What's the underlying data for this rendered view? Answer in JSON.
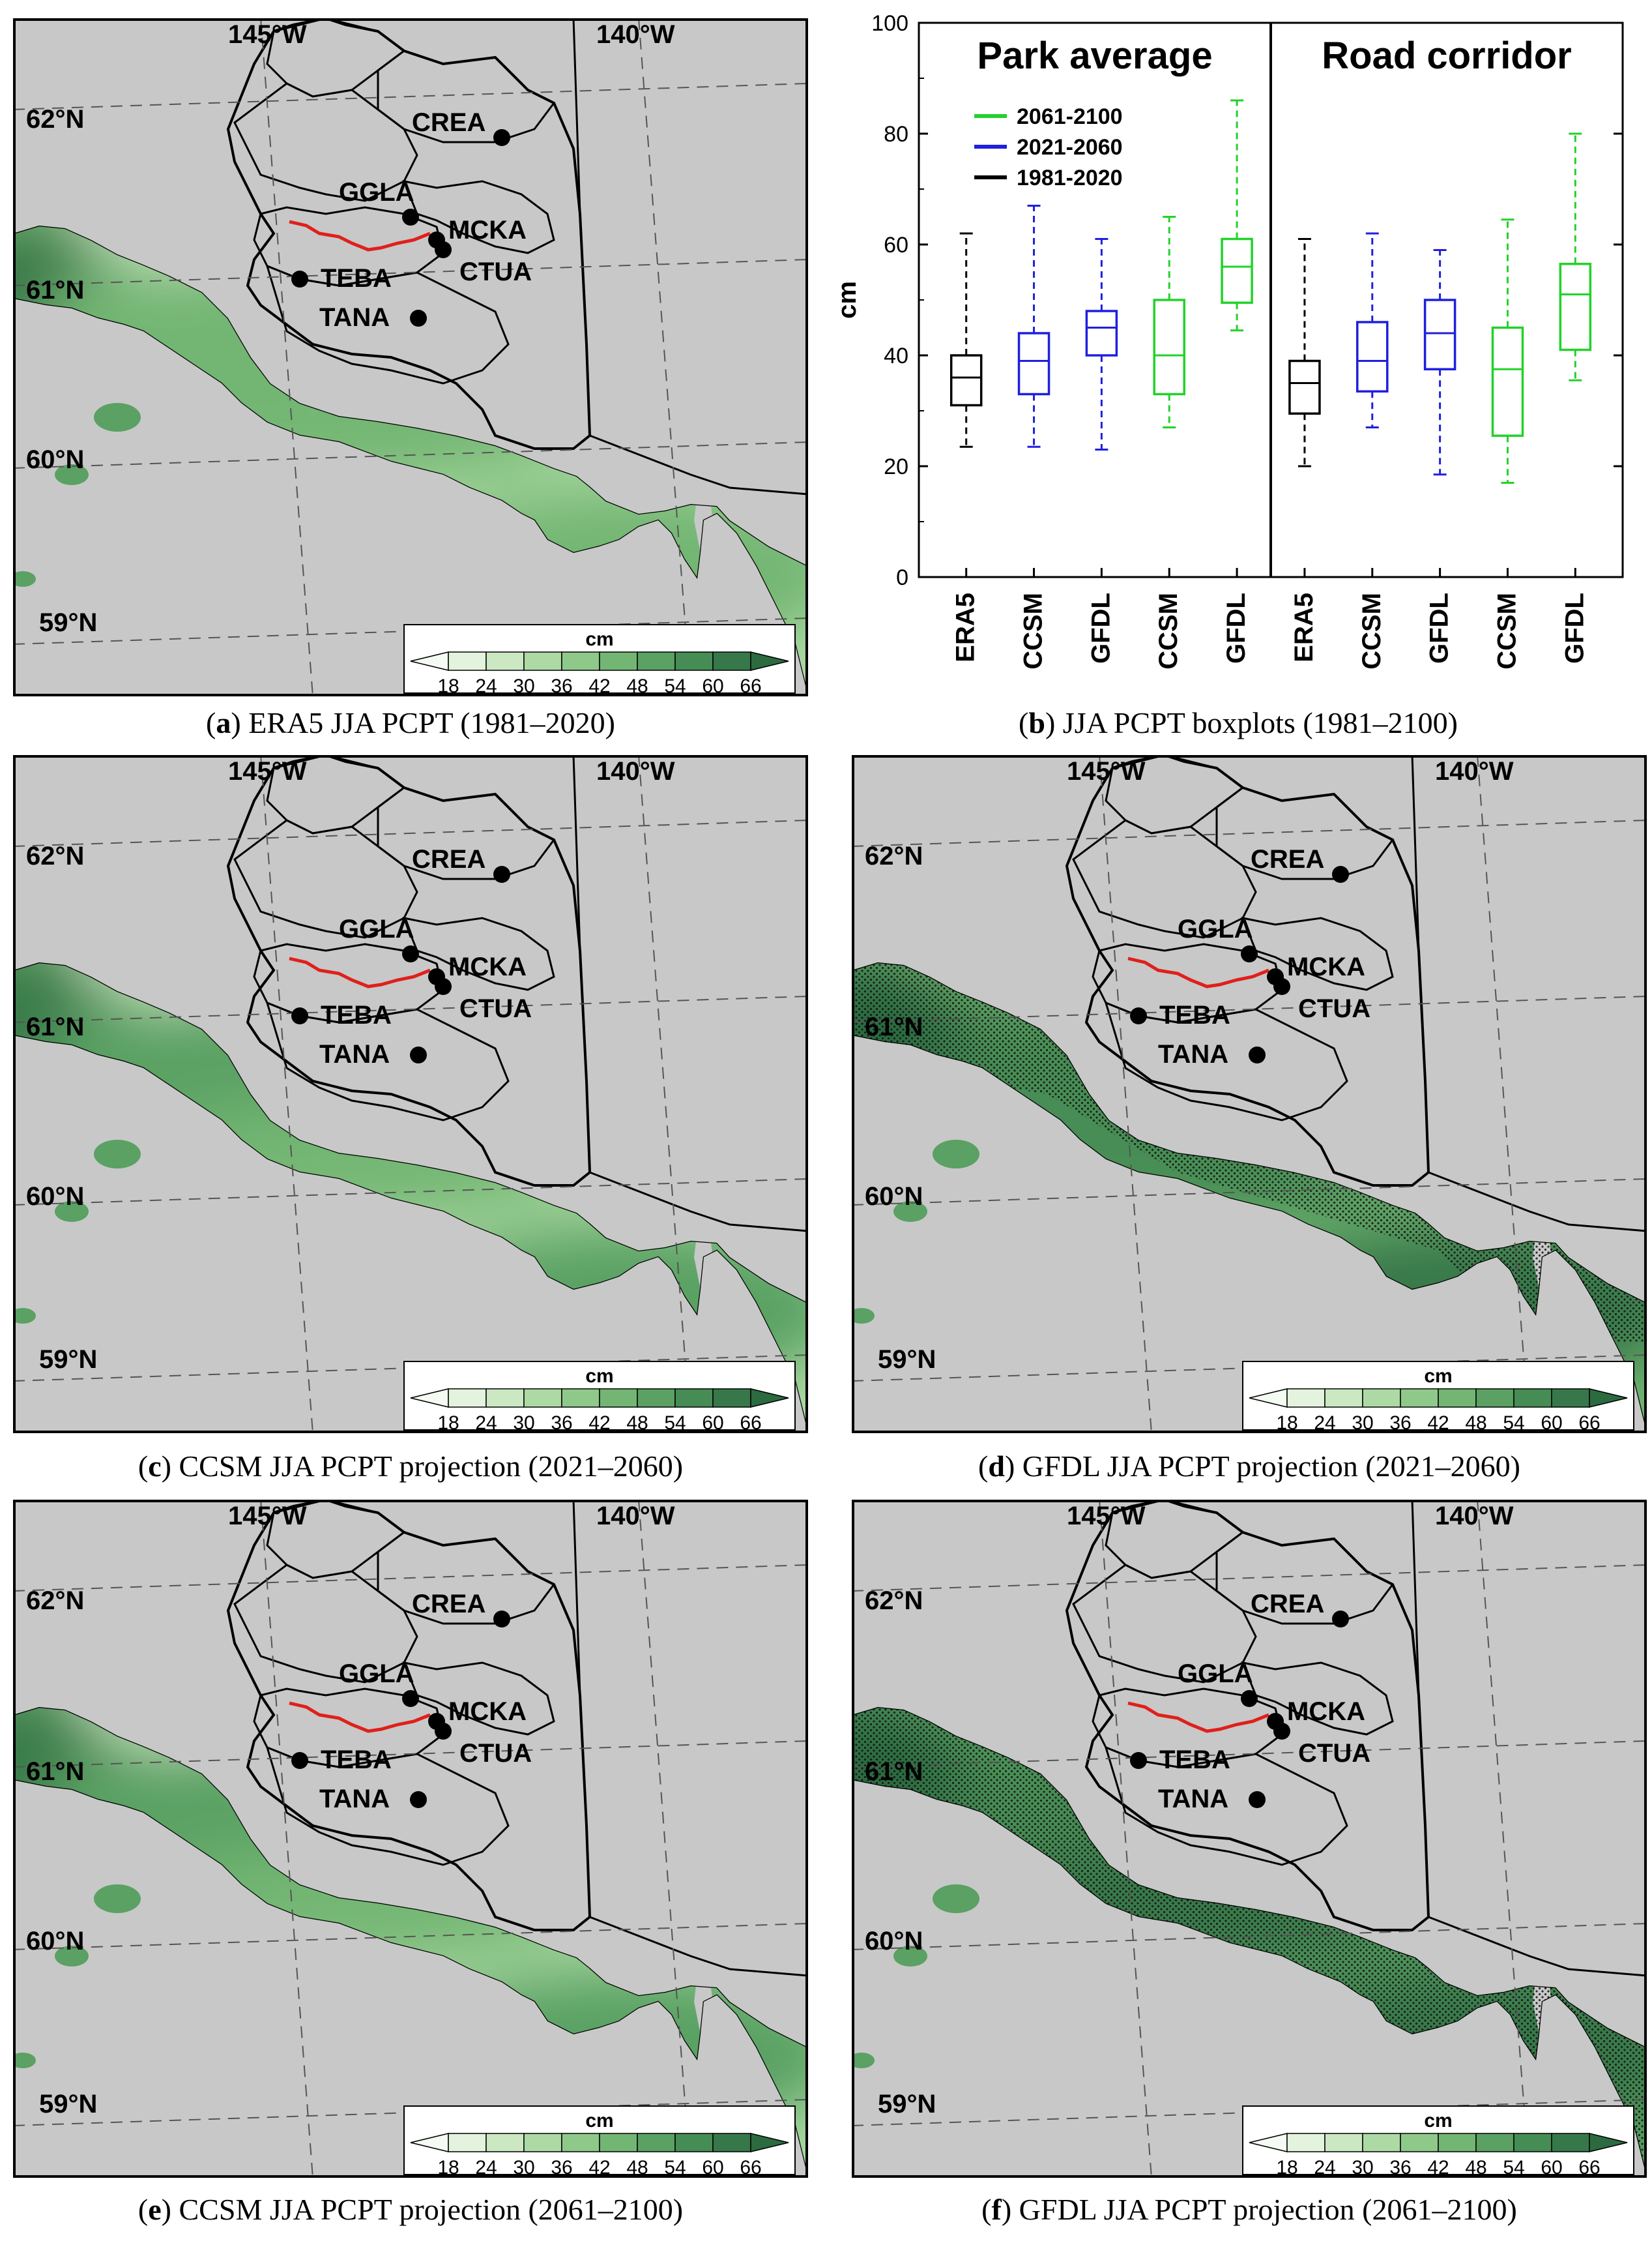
{
  "map_labels": {
    "lon": [
      "145°W",
      "140°W"
    ],
    "lat": [
      "62°N",
      "61°N",
      "60°N",
      "59°N"
    ],
    "sites": [
      "CREA",
      "GGLA",
      "MCKA",
      "CTUA",
      "TEBA",
      "TANA"
    ],
    "colorbar_unit": "cm",
    "colorbar_ticks": [
      "18",
      "24",
      "30",
      "36",
      "42",
      "48",
      "54",
      "60",
      "66"
    ]
  },
  "colors": {
    "land_gray": "#c8c8c8",
    "road_red": "#e0201b",
    "scale": [
      "#f4fbf2",
      "#e3f3dd",
      "#cbe8c3",
      "#addaa4",
      "#8fc98a",
      "#73b673",
      "#5aa163",
      "#468d55",
      "#37784a",
      "#2c6a40"
    ],
    "era5": "#000000",
    "near": "#1f1fe0",
    "far": "#22d22a"
  },
  "panels": [
    {
      "id": "a",
      "letter": "a",
      "caption": "ERA5 JJA PCPT (1981–2020)",
      "stipple": "none",
      "tone": 0
    },
    {
      "id": "c",
      "letter": "c",
      "caption": "CCSM JJA PCPT projection (2021–2060)",
      "stipple": "east",
      "tone": 1
    },
    {
      "id": "d",
      "letter": "d",
      "caption": "GFDL JJA PCPT projection (2021–2060)",
      "stipple": "wide",
      "tone": 2
    },
    {
      "id": "e",
      "letter": "e",
      "caption": "CCSM JJA PCPT projection (2061–2100)",
      "stipple": "east",
      "tone": 1
    },
    {
      "id": "f",
      "letter": "f",
      "caption": "GFDL JJA PCPT projection (2061–2100)",
      "stipple": "all",
      "tone": 3
    }
  ],
  "boxplot_caption": {
    "letter": "b",
    "text": "JJA PCPT boxplots (1981–2100)"
  },
  "chart_data": {
    "type": "boxplot",
    "ylabel": "cm",
    "ylim": [
      0,
      100
    ],
    "yticks": [
      "0",
      "20",
      "40",
      "60",
      "80",
      "100"
    ],
    "group_titles": [
      "Park average",
      "Road corridor"
    ],
    "legend": [
      {
        "label": "2061-2100",
        "period": "far"
      },
      {
        "label": "2021-2060",
        "period": "near"
      },
      {
        "label": "1981-2020",
        "period": "era5"
      }
    ],
    "boxes": [
      {
        "label": "ERA5",
        "period": "era5",
        "whislo": 23.5,
        "q1": 31,
        "median": 36,
        "q3": 40,
        "whishi": 62
      },
      {
        "label": "CCSM",
        "period": "near",
        "whislo": 23.5,
        "q1": 33,
        "median": 39,
        "q3": 44,
        "whishi": 67
      },
      {
        "label": "GFDL",
        "period": "near",
        "whislo": 23,
        "q1": 40,
        "median": 45,
        "q3": 48,
        "whishi": 61
      },
      {
        "label": "CCSM",
        "period": "far",
        "whislo": 27,
        "q1": 33,
        "median": 40,
        "q3": 50,
        "whishi": 65
      },
      {
        "label": "GFDL",
        "period": "far",
        "whislo": 44.5,
        "q1": 49.5,
        "median": 56,
        "q3": 61,
        "whishi": 86
      },
      {
        "label": "ERA5",
        "period": "era5",
        "whislo": 20,
        "q1": 29.5,
        "median": 35,
        "q3": 39,
        "whishi": 61
      },
      {
        "label": "CCSM",
        "period": "near",
        "whislo": 27,
        "q1": 33.5,
        "median": 39,
        "q3": 46,
        "whishi": 62
      },
      {
        "label": "GFDL",
        "period": "near",
        "whislo": 18.5,
        "q1": 37.5,
        "median": 44,
        "q3": 50,
        "whishi": 59
      },
      {
        "label": "CCSM",
        "period": "far",
        "whislo": 17,
        "q1": 25.5,
        "median": 37.5,
        "q3": 45,
        "whishi": 64.5
      },
      {
        "label": "GFDL",
        "period": "far",
        "whislo": 35.5,
        "q1": 41,
        "median": 51,
        "q3": 56.5,
        "whishi": 80
      }
    ]
  }
}
